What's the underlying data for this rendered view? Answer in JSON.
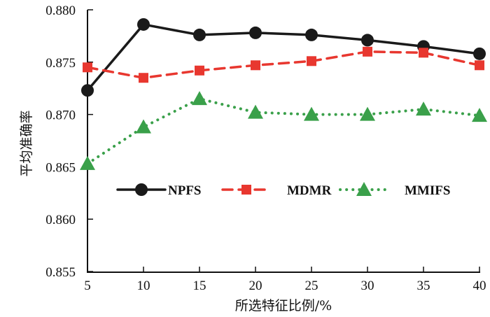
{
  "chart_data": {
    "type": "line",
    "title": "",
    "xlabel": "所选特征比例/%",
    "ylabel": "平均准确率",
    "x": [
      5,
      10,
      15,
      20,
      25,
      30,
      35,
      40
    ],
    "xticks": [
      "5",
      "10",
      "15",
      "20",
      "25",
      "30",
      "35",
      "40"
    ],
    "yticks": [
      "0.855",
      "0.860",
      "0.865",
      "0.870",
      "0.875",
      "0.880"
    ],
    "xlim": [
      5,
      40
    ],
    "ylim": [
      0.855,
      0.88
    ],
    "grid": false,
    "legend_position": "center",
    "series": [
      {
        "name": "NPFS",
        "color": "#1a1a1a",
        "line": "solid",
        "marker": "circle",
        "values": [
          0.8723,
          0.8786,
          0.8776,
          0.8778,
          0.8776,
          0.8771,
          0.8765,
          0.8758
        ]
      },
      {
        "name": "MDMR",
        "color": "#e8372f",
        "line": "dashed",
        "marker": "square",
        "values": [
          0.8745,
          0.8735,
          0.8742,
          0.8747,
          0.8751,
          0.876,
          0.8759,
          0.8747
        ]
      },
      {
        "name": "MMIFS",
        "color": "#3aa04a",
        "line": "dotted",
        "marker": "triangle",
        "values": [
          0.8653,
          0.8688,
          0.8715,
          0.8702,
          0.87,
          0.87,
          0.8705,
          0.8699
        ]
      }
    ]
  }
}
